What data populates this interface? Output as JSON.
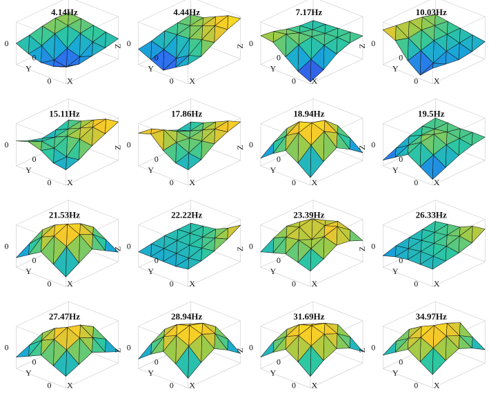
{
  "chart_data": {
    "type": "3d-surface-grid",
    "colormap": [
      "#3e26a8",
      "#2f6cf0",
      "#19a7d8",
      "#2dc7a2",
      "#9ccb4a",
      "#f4c62c",
      "#f9e21d"
    ],
    "axes": {
      "x_label": "X",
      "y_label": "Y",
      "z_label": "Z",
      "tick_value": "0"
    },
    "layout": {
      "rows": 4,
      "cols": 4
    },
    "modes": [
      {
        "title": "4.14Hz",
        "heights": [
          [
            0.3,
            0.25,
            0.15,
            0.05,
            -0.05
          ],
          [
            0.35,
            0.2,
            0.05,
            -0.15,
            -0.2
          ],
          [
            0.25,
            0.1,
            -0.4,
            -0.6,
            -0.3
          ],
          [
            0.1,
            -0.2,
            -0.7,
            -0.8,
            -0.4
          ],
          [
            0.0,
            -0.3,
            -0.5,
            -0.45,
            -0.2
          ]
        ]
      },
      {
        "title": "4.44Hz",
        "heights": [
          [
            0.2,
            0.3,
            0.6,
            0.9,
            1.0
          ],
          [
            0.1,
            0.2,
            0.45,
            0.7,
            0.75
          ],
          [
            0.0,
            0.05,
            0.1,
            0.3,
            0.4
          ],
          [
            -0.2,
            -0.4,
            -0.6,
            -0.2,
            0.0
          ],
          [
            -0.3,
            -0.6,
            -0.9,
            -0.5,
            -0.1
          ]
        ]
      },
      {
        "title": "7.17Hz",
        "heights": [
          [
            -0.1,
            -0.05,
            0.0,
            0.05,
            0.1
          ],
          [
            -0.05,
            0.0,
            0.05,
            0.1,
            0.05
          ],
          [
            0.1,
            0.15,
            0.2,
            0.0,
            -0.2
          ],
          [
            0.3,
            0.4,
            0.1,
            -0.4,
            -0.7
          ],
          [
            0.4,
            0.3,
            -0.2,
            -0.7,
            -1.0
          ]
        ]
      },
      {
        "title": "10.03Hz",
        "heights": [
          [
            0.2,
            0.1,
            0.0,
            -0.1,
            -0.2
          ],
          [
            0.4,
            0.2,
            0.0,
            -0.2,
            -0.4
          ],
          [
            0.5,
            0.3,
            0.0,
            -0.3,
            -0.5
          ],
          [
            0.6,
            0.2,
            -0.2,
            -0.6,
            -0.4
          ],
          [
            0.7,
            0.4,
            -0.4,
            -0.9,
            -0.3
          ]
        ]
      },
      {
        "title": "15.11Hz",
        "heights": [
          [
            0.0,
            0.2,
            0.5,
            0.8,
            0.9
          ],
          [
            -0.2,
            0.1,
            0.4,
            0.7,
            0.6
          ],
          [
            -0.3,
            0.0,
            0.3,
            0.4,
            0.3
          ],
          [
            -0.1,
            0.1,
            0.0,
            -0.2,
            -0.1
          ],
          [
            0.2,
            0.4,
            0.2,
            -0.2,
            -0.3
          ]
        ]
      },
      {
        "title": "17.86Hz",
        "heights": [
          [
            -0.1,
            0.1,
            0.4,
            0.7,
            0.9
          ],
          [
            -0.2,
            0.0,
            0.3,
            0.6,
            0.7
          ],
          [
            0.1,
            0.3,
            0.2,
            0.3,
            0.4
          ],
          [
            0.5,
            0.7,
            0.3,
            0.0,
            -0.1
          ],
          [
            0.6,
            0.8,
            0.2,
            -0.2,
            -0.3
          ]
        ]
      },
      {
        "title": "18.94Hz",
        "heights": [
          [
            -0.7,
            -0.2,
            0.2,
            -0.2,
            -0.7
          ],
          [
            -0.2,
            0.4,
            0.8,
            0.4,
            -0.2
          ],
          [
            0.2,
            0.8,
            1.0,
            0.8,
            0.2
          ],
          [
            -0.2,
            0.4,
            0.8,
            0.4,
            -0.2
          ],
          [
            -0.7,
            -0.2,
            0.2,
            -0.2,
            -0.7
          ]
        ]
      },
      {
        "title": "19.5Hz",
        "heights": [
          [
            0.1,
            0.1,
            0.05,
            0.1,
            0.1
          ],
          [
            0.0,
            0.1,
            0.2,
            0.1,
            0.0
          ],
          [
            -0.2,
            0.1,
            0.4,
            0.1,
            -0.2
          ],
          [
            -0.5,
            -0.1,
            0.3,
            -0.1,
            -0.5
          ],
          [
            -0.8,
            -0.4,
            0.0,
            -0.4,
            -0.8
          ]
        ]
      },
      {
        "title": "21.53Hz",
        "heights": [
          [
            -0.6,
            -0.2,
            0.2,
            -0.2,
            -0.6
          ],
          [
            -0.2,
            0.4,
            0.7,
            0.4,
            -0.2
          ],
          [
            0.2,
            0.7,
            1.0,
            0.7,
            0.2
          ],
          [
            -0.2,
            0.4,
            0.7,
            0.4,
            -0.2
          ],
          [
            -0.6,
            -0.2,
            0.2,
            -0.2,
            -0.6
          ]
        ]
      },
      {
        "title": "22.22Hz",
        "heights": [
          [
            -0.1,
            0.0,
            0.1,
            0.4,
            0.8
          ],
          [
            -0.1,
            -0.05,
            0.0,
            0.2,
            0.4
          ],
          [
            -0.1,
            -0.1,
            -0.1,
            0.0,
            0.1
          ],
          [
            -0.2,
            -0.2,
            -0.2,
            -0.2,
            -0.1
          ],
          [
            -0.3,
            -0.3,
            -0.3,
            -0.3,
            -0.2
          ]
        ]
      },
      {
        "title": "23.39Hz",
        "heights": [
          [
            0.0,
            0.3,
            0.5,
            0.3,
            0.0
          ],
          [
            0.3,
            0.7,
            0.6,
            0.8,
            0.3
          ],
          [
            0.4,
            0.6,
            0.2,
            0.6,
            0.4
          ],
          [
            0.1,
            0.4,
            0.5,
            0.3,
            0.0
          ],
          [
            -0.3,
            -0.1,
            0.1,
            -0.1,
            -0.3
          ]
        ]
      },
      {
        "title": "26.33Hz",
        "heights": [
          [
            0.0,
            0.1,
            0.2,
            0.5,
            0.6
          ],
          [
            -0.1,
            0.0,
            0.1,
            0.3,
            0.2
          ],
          [
            -0.2,
            -0.1,
            0.0,
            0.1,
            0.0
          ],
          [
            -0.3,
            -0.2,
            -0.1,
            -0.1,
            -0.1
          ],
          [
            -0.5,
            -0.3,
            -0.2,
            -0.2,
            -0.2
          ]
        ]
      },
      {
        "title": "27.47Hz",
        "heights": [
          [
            -0.5,
            -0.1,
            0.3,
            -0.1,
            -0.5
          ],
          [
            -0.2,
            0.3,
            0.7,
            0.3,
            -0.2
          ],
          [
            0.1,
            0.6,
            0.9,
            0.6,
            0.1
          ],
          [
            -0.2,
            0.3,
            0.6,
            0.3,
            -0.2
          ],
          [
            -0.5,
            -0.2,
            0.1,
            -0.2,
            -0.5
          ]
        ]
      },
      {
        "title": "28.94Hz",
        "heights": [
          [
            -0.6,
            -0.1,
            0.3,
            -0.1,
            -0.6
          ],
          [
            -0.1,
            0.5,
            0.8,
            0.5,
            -0.1
          ],
          [
            0.3,
            0.8,
            1.0,
            0.8,
            0.3
          ],
          [
            -0.1,
            0.5,
            0.8,
            0.5,
            -0.1
          ],
          [
            -0.6,
            -0.1,
            0.3,
            -0.1,
            -0.6
          ]
        ]
      },
      {
        "title": "31.69Hz",
        "heights": [
          [
            -0.5,
            0.0,
            0.4,
            0.0,
            -0.5
          ],
          [
            0.0,
            0.5,
            0.8,
            0.5,
            0.0
          ],
          [
            0.3,
            0.8,
            1.0,
            0.8,
            0.3
          ],
          [
            0.0,
            0.5,
            0.8,
            0.5,
            0.0
          ],
          [
            -0.5,
            0.0,
            0.4,
            0.0,
            -0.5
          ]
        ]
      },
      {
        "title": "34.97Hz",
        "heights": [
          [
            -0.4,
            0.0,
            0.5,
            0.0,
            -0.4
          ],
          [
            0.0,
            0.4,
            0.8,
            0.4,
            0.0
          ],
          [
            0.3,
            0.7,
            1.0,
            0.7,
            0.3
          ],
          [
            0.0,
            0.4,
            0.7,
            0.4,
            0.0
          ],
          [
            -0.4,
            0.0,
            0.4,
            0.0,
            -0.4
          ]
        ]
      }
    ]
  }
}
